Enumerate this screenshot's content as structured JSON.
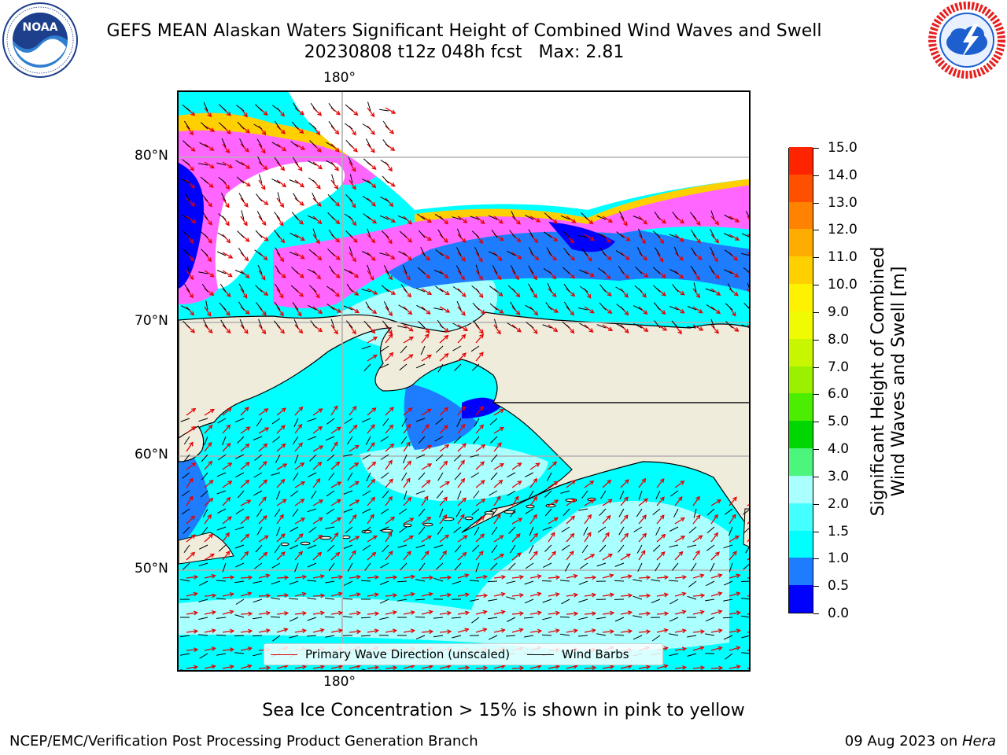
{
  "title": {
    "line1": "GEFS MEAN Alaskan Waters Significant Height of Combined Wind Waves and Swell",
    "line2": "20230808 t12z 048h fcst   Max: 2.81"
  },
  "logos": {
    "left": {
      "name": "NOAA",
      "ring_text": "NATIONAL OCEANIC AND ATMOSPHERIC ADMINISTRATION · U.S. DEPARTMENT OF COMMERCE",
      "colors": [
        "#1d3f8c",
        "#2f7fd0",
        "#ffffff"
      ]
    },
    "right": {
      "name": "NATIONAL WEATHER SERVICE",
      "colors": [
        "#e61f1f",
        "#1d5fcf",
        "#ffffff"
      ]
    }
  },
  "map": {
    "lon_labels": [
      "180°",
      "180°"
    ],
    "lat_labels": [
      "80°N",
      "70°N",
      "60°N",
      "50°N"
    ],
    "colors": {
      "land": "#efecdc",
      "coast": "#000000",
      "grid": "#b0b0b0",
      "arrow": "#e60000",
      "barb": "#000000"
    },
    "legend": {
      "arrow_label": "Primary Wave Direction (unscaled)",
      "barb_label": "Wind Barbs"
    }
  },
  "colorbar": {
    "title": "Significant Height of Combined\nWind Waves and Swell [m]",
    "levels": [
      "0.0",
      "0.5",
      "1.0",
      "1.5",
      "2.0",
      "3.0",
      "4.0",
      "5.0",
      "6.0",
      "7.0",
      "8.0",
      "9.0",
      "10.0",
      "11.0",
      "12.0",
      "13.0",
      "14.0",
      "15.0"
    ],
    "colors": [
      "#0000ff",
      "#1e7dff",
      "#00ffff",
      "#43ffff",
      "#aaffff",
      "#4cf57c",
      "#00d600",
      "#4ced00",
      "#9bf000",
      "#c8f500",
      "#f0fa00",
      "#fff200",
      "#ffd000",
      "#ffac00",
      "#ff8200",
      "#ff5000",
      "#ff2400"
    ]
  },
  "caption": "Sea Ice Concentration > 15% is shown in pink to yellow",
  "footer": {
    "left": "NCEP/EMC/Verification Post Processing Product Generation Branch",
    "right_prefix": "09 Aug 2023 on ",
    "right_host": "Hera"
  }
}
